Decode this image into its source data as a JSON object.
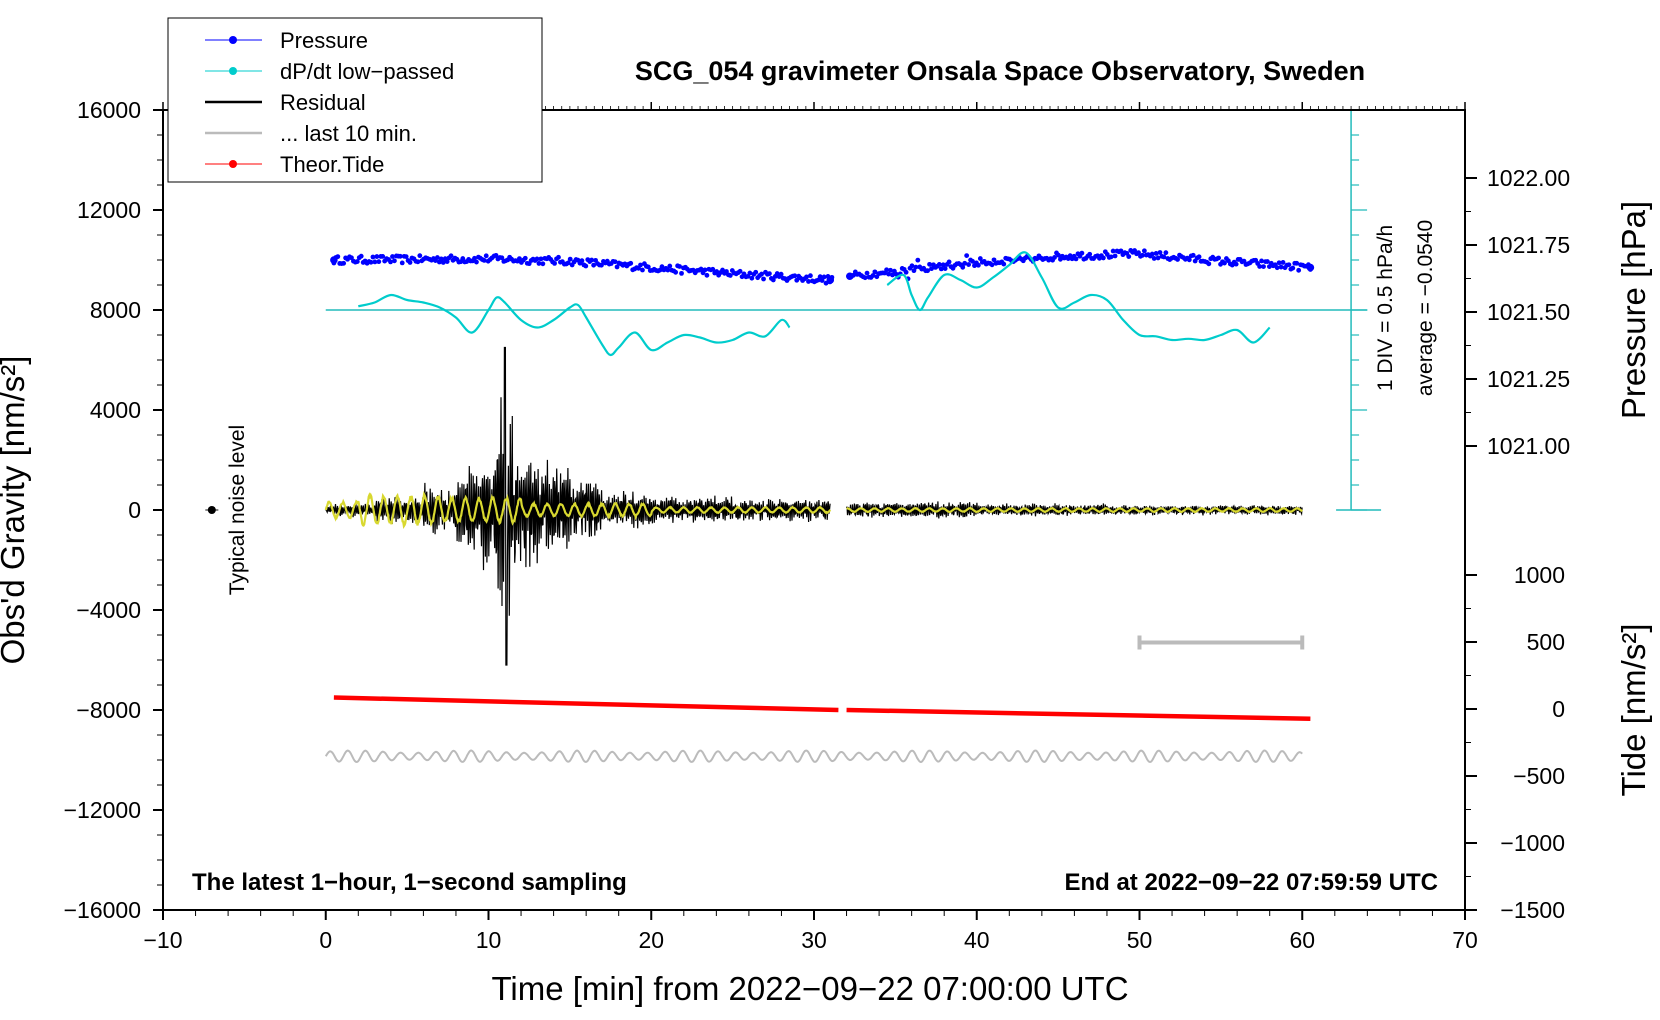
{
  "chart_data": {
    "type": "line",
    "title": "SCG_054 gravimeter Onsala Space Observatory, Sweden",
    "xlabel": "Time [min] from 2022−09−22 07:00:00 UTC",
    "ylabel_left": "Obs'd Gravity [nm/s²]",
    "ylabel_right_top": "Pressure [hPa]",
    "ylabel_right_bottom": "Tide [nm/s²]",
    "xlim": [
      -10,
      70
    ],
    "ylim": [
      -16000,
      16000
    ],
    "x_ticks": [
      "−10",
      "0",
      "10",
      "20",
      "30",
      "40",
      "50",
      "60",
      "70"
    ],
    "y_ticks": [
      "16000",
      "12000",
      "8000",
      "4000",
      "0",
      "−4000",
      "−8000",
      "−12000",
      "−16000"
    ],
    "pressure_ticks": [
      "1022.00",
      "1021.75",
      "1021.50",
      "1021.25",
      "1021.00"
    ],
    "tide_ticks": [
      "1000",
      "500",
      "0",
      "−500",
      "−1000",
      "−1500"
    ],
    "legend": [
      {
        "label": "Pressure",
        "color": "#0000ff",
        "marker": true
      },
      {
        "label": "dP/dt low−passed",
        "color": "#00cccc",
        "marker": true
      },
      {
        "label": "Residual",
        "color": "#000000",
        "marker": false
      },
      {
        "label": "... last 10 min.",
        "color": "#bbbbbb",
        "marker": false
      },
      {
        "label": "Theor.Tide",
        "color": "#ff0000",
        "marker": true
      }
    ],
    "annotations": {
      "left_bottom": "The latest 1−hour, 1−second sampling",
      "right_bottom": "End at 2022−09−22 07:59:59 UTC",
      "noise": "Typical noise level",
      "scale_div": "1 DIV = 0.5 hPa/h",
      "scale_avg": "average = −0.0540"
    },
    "series": [
      {
        "name": "Pressure",
        "color": "#0000ff",
        "x": [
          0.5,
          5,
          10,
          15,
          20,
          25,
          30,
          31,
          32,
          35,
          40,
          45,
          50,
          55,
          60.5
        ],
        "y": [
          10000,
          10020,
          10050,
          9950,
          9700,
          9450,
          9250,
          9200,
          9350,
          9550,
          9900,
          10150,
          10250,
          9950,
          9700
        ]
      },
      {
        "name": "dP/dt low−passed",
        "color": "#00cccc",
        "x": [
          2,
          3,
          4,
          5,
          6,
          7,
          8,
          9,
          10,
          10.5,
          11,
          12,
          13,
          14,
          15,
          15.5,
          16,
          17,
          17.5,
          18,
          19,
          20,
          21,
          22,
          23,
          24,
          25,
          26,
          27,
          28,
          28.5
        ],
        "y": [
          8150,
          8300,
          8600,
          8400,
          8300,
          8100,
          7700,
          7100,
          8000,
          8500,
          8300,
          7600,
          7300,
          7600,
          8100,
          8200,
          7700,
          6600,
          6200,
          6500,
          7100,
          6400,
          6700,
          7000,
          6900,
          6700,
          6800,
          7100,
          6950,
          7600,
          7300
        ]
      },
      {
        "name": "dP/dt low−passed (2)",
        "color": "#00cccc",
        "x": [
          34.5,
          35.5,
          36,
          36.5,
          37,
          38,
          39,
          40,
          41,
          42,
          43,
          44,
          45,
          46,
          47,
          48,
          49,
          50,
          51,
          52,
          53,
          54,
          55,
          56,
          57,
          58
        ],
        "y": [
          9000,
          9400,
          8600,
          8000,
          8500,
          9400,
          9200,
          8900,
          9300,
          9800,
          10300,
          9300,
          8100,
          8300,
          8600,
          8400,
          7600,
          7000,
          6950,
          6800,
          6850,
          6800,
          7000,
          7200,
          6700,
          7300
        ]
      },
      {
        "name": "Theor.Tide",
        "color": "#ff0000",
        "x": [
          0.5,
          31.5,
          32,
          60.5
        ],
        "y": [
          -7500,
          -8000,
          -8000,
          -8350
        ]
      }
    ]
  }
}
